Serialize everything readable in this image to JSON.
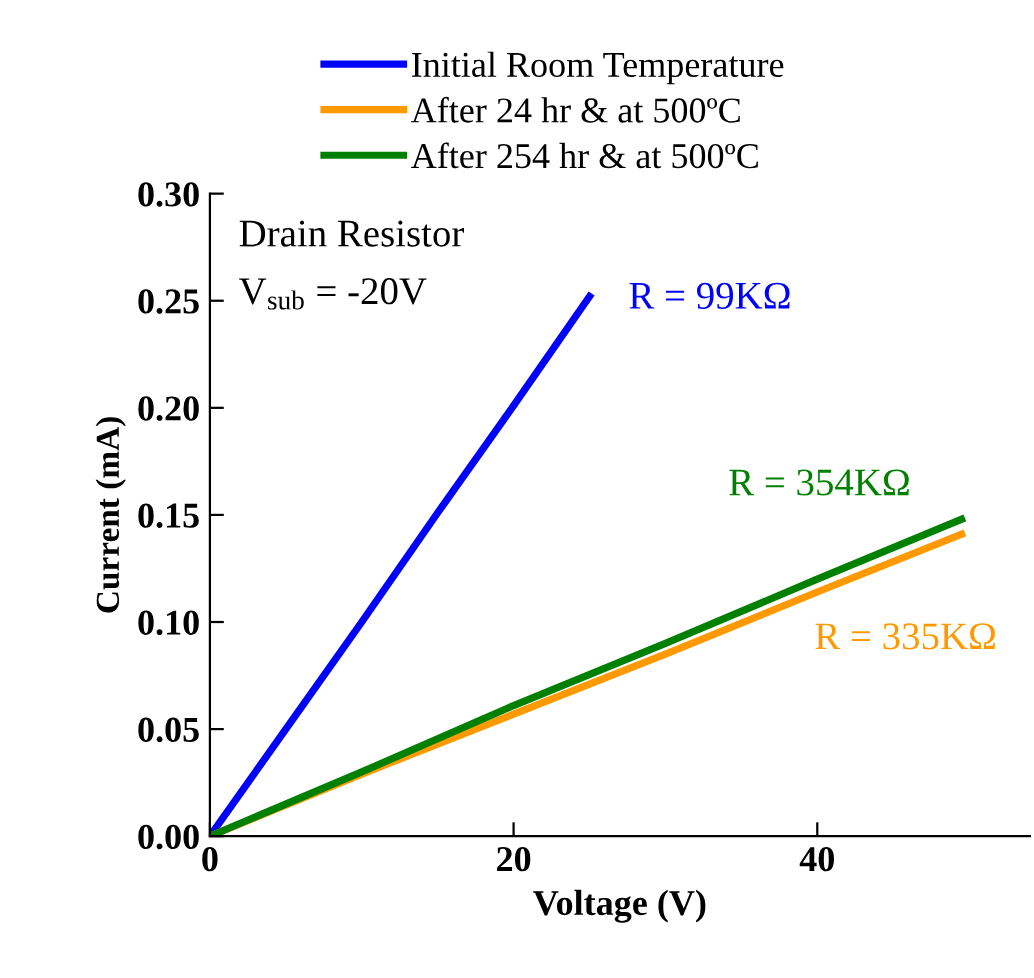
{
  "chart_data": {
    "type": "line",
    "xlabel": "Voltage (V)",
    "ylabel": "Current (mA)",
    "xlim": [
      0,
      54
    ],
    "xticks": [
      0,
      20,
      40
    ],
    "ylim": [
      0,
      0.3
    ],
    "yticks": [
      {
        "value": 0,
        "label": "0.00"
      },
      {
        "value": 0.05,
        "label": "0.05"
      },
      {
        "value": 0.1,
        "label": "0.10"
      },
      {
        "value": 0.15,
        "label": "0.15"
      },
      {
        "value": 0.2,
        "label": "0.20"
      },
      {
        "value": 0.25,
        "label": "0.25"
      },
      {
        "value": 0.3,
        "label": "0.30"
      }
    ],
    "series": [
      {
        "name": "Initial Room Temperature",
        "color": "#0000ff",
        "x": [
          0,
          5,
          10,
          15,
          20,
          25
        ],
        "values": [
          0,
          0.05,
          0.1,
          0.151,
          0.201,
          0.252
        ]
      },
      {
        "name": "After 24 hr & at 500ºC",
        "color": "#ff9900",
        "x": [
          0,
          10,
          20,
          30,
          40,
          49.5
        ],
        "values": [
          0,
          0.029,
          0.057,
          0.085,
          0.114,
          0.141
        ]
      },
      {
        "name": "After 254 hr & at 500ºC",
        "color": "#008000",
        "x": [
          0,
          10,
          20,
          30,
          40,
          49.5
        ],
        "values": [
          0,
          0.03,
          0.061,
          0.09,
          0.12,
          0.148
        ]
      }
    ],
    "annotations": [
      "Drain Resistor",
      "V$_{sub}$ = -20V",
      "R = 99KΩ",
      "R = 335KΩ",
      "R = 354KΩ"
    ],
    "legend": "top",
    "grid": false,
    "marker": "none",
    "line_style": "solid"
  }
}
